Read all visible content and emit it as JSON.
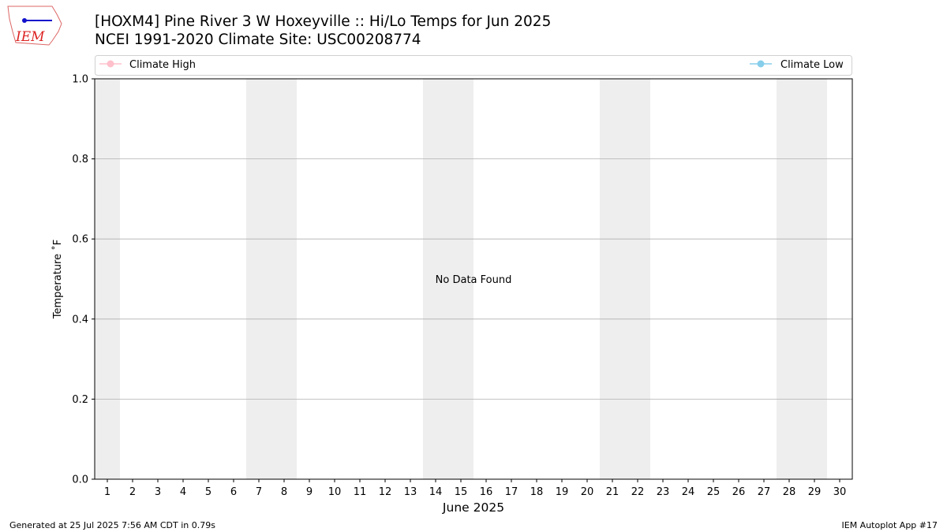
{
  "header": {
    "title_line1": "[HOXM4] Pine River 3 W Hoxeyville :: Hi/Lo Temps for Jun 2025",
    "title_line2": "NCEI 1991-2020 Climate Site: USC00208774",
    "logo_text": "IEM"
  },
  "footer": {
    "generated": "Generated at 25 Jul 2025 7:56 AM CDT in 0.79s",
    "app": "IEM Autoplot App #17"
  },
  "chart_data": {
    "type": "line",
    "title": "[HOXM4] Pine River 3 W Hoxeyville :: Hi/Lo Temps for Jun 2025",
    "xlabel": "June 2025",
    "ylabel": "Temperature $^\\circ$F",
    "ylabel_display": "Temperature ˚F",
    "xlim": [
      0.5,
      30.5
    ],
    "ylim": [
      0,
      1
    ],
    "x_ticks": [
      1,
      2,
      3,
      4,
      5,
      6,
      7,
      8,
      9,
      10,
      11,
      12,
      13,
      14,
      15,
      16,
      17,
      18,
      19,
      20,
      21,
      22,
      23,
      24,
      25,
      26,
      27,
      28,
      29,
      30
    ],
    "y_ticks": [
      "0.0",
      "0.2",
      "0.4",
      "0.6",
      "0.8",
      "1.0"
    ],
    "grid": "y",
    "weekend_bands": [
      [
        0.5,
        1.5
      ],
      [
        6.5,
        8.5
      ],
      [
        13.5,
        15.5
      ],
      [
        20.5,
        22.5
      ],
      [
        27.5,
        29.5
      ]
    ],
    "annotation": "No Data Found",
    "legend": [
      {
        "name": "Climate High",
        "color": "#ffc0cb",
        "placement": "top-left"
      },
      {
        "name": "Climate Low",
        "color": "#87ceeb",
        "placement": "top-right"
      }
    ],
    "series": [
      {
        "name": "Climate High",
        "values": []
      },
      {
        "name": "Climate Low",
        "values": []
      }
    ]
  }
}
